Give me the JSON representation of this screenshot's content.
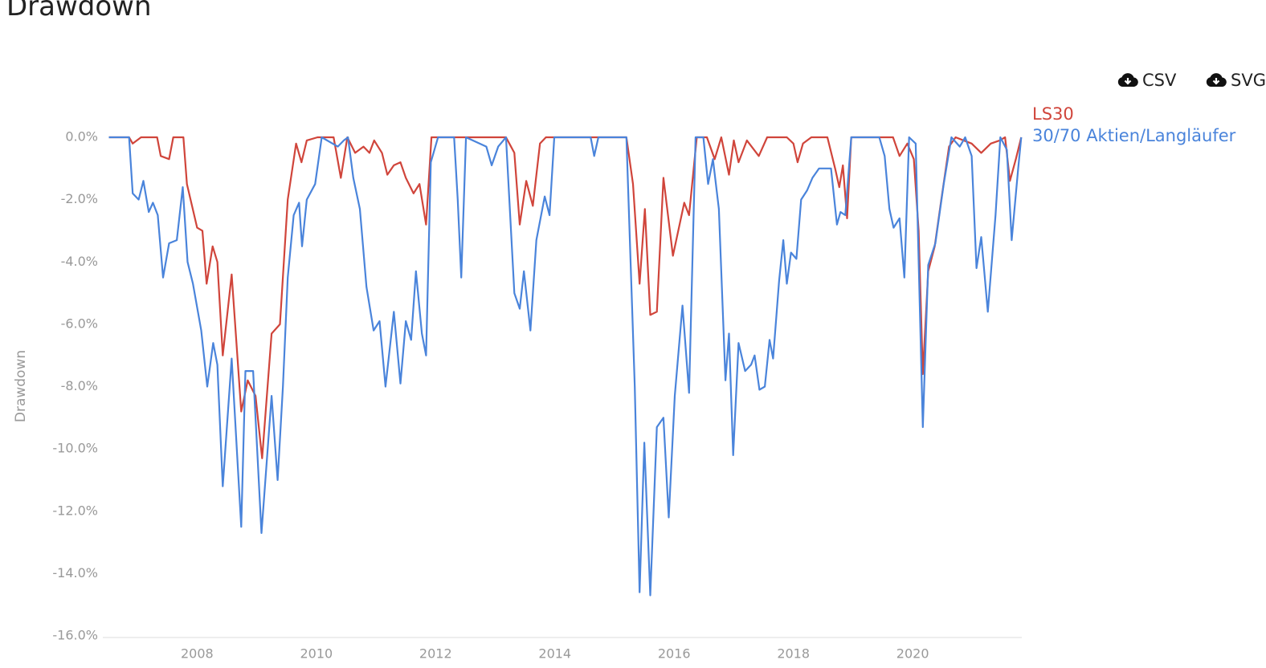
{
  "title": "Drawdown",
  "downloads": [
    "CSV",
    "SVG"
  ],
  "chart_data": {
    "type": "line",
    "ylabel": "Drawdown",
    "xlim": [
      2006.5,
      2021.83
    ],
    "xticks": [
      2008,
      2010,
      2012,
      2014,
      2016,
      2018,
      2020
    ],
    "ylim": [
      -16,
      0
    ],
    "yticks": [
      {
        "value": 0,
        "label": "0.0%"
      },
      {
        "value": -2,
        "label": "-2.0%"
      },
      {
        "value": -4,
        "label": "-4.0%"
      },
      {
        "value": -6,
        "label": "-6.0%"
      },
      {
        "value": -8,
        "label": "-8.0%"
      },
      {
        "value": -10,
        "label": "-10.0%"
      },
      {
        "value": -12,
        "label": "-12.0%"
      },
      {
        "value": -14,
        "label": "-14.0%"
      },
      {
        "value": -16,
        "label": "-16.0%"
      }
    ],
    "grid": false,
    "legend": "top-right",
    "series": [
      {
        "name": "LS30",
        "color": "#d0453b",
        "x": [
          2006.52,
          2006.86,
          2006.92,
          2007.06,
          2007.33,
          2007.39,
          2007.53,
          2007.6,
          2007.77,
          2007.83,
          2008.0,
          2008.09,
          2008.16,
          2008.26,
          2008.34,
          2008.43,
          2008.58,
          2008.74,
          2008.85,
          2008.98,
          2009.09,
          2009.25,
          2009.39,
          2009.52,
          2009.66,
          2009.75,
          2009.84,
          2010.02,
          2010.29,
          2010.41,
          2010.52,
          2010.65,
          2010.79,
          2010.89,
          2010.97,
          2011.1,
          2011.19,
          2011.3,
          2011.41,
          2011.5,
          2011.63,
          2011.73,
          2011.84,
          2011.93,
          2012.78,
          2013.18,
          2013.32,
          2013.41,
          2013.52,
          2013.63,
          2013.75,
          2013.85,
          2015.2,
          2015.31,
          2015.42,
          2015.51,
          2015.6,
          2015.71,
          2015.82,
          2015.98,
          2016.17,
          2016.25,
          2016.38,
          2016.55,
          2016.68,
          2016.79,
          2016.92,
          2017.0,
          2017.08,
          2017.22,
          2017.42,
          2017.56,
          2017.89,
          2018.0,
          2018.07,
          2018.16,
          2018.3,
          2018.57,
          2018.7,
          2018.77,
          2018.83,
          2018.9,
          2018.97,
          2019.51,
          2019.67,
          2019.78,
          2019.91,
          2020.02,
          2020.1,
          2020.17,
          2020.26,
          2020.37,
          2020.48,
          2020.61,
          2020.72,
          2020.99,
          2021.15,
          2021.31,
          2021.46,
          2021.55,
          2021.63,
          2021.73,
          2021.82
        ],
        "values": [
          0,
          0,
          -0.2,
          0,
          0,
          -0.6,
          -0.7,
          0,
          0,
          -1.5,
          -2.9,
          -3.0,
          -4.7,
          -3.5,
          -4.0,
          -7.0,
          -4.4,
          -8.8,
          -7.8,
          -8.3,
          -10.3,
          -6.3,
          -6.0,
          -2.0,
          -0.2,
          -0.8,
          -0.1,
          0,
          0,
          -1.3,
          0,
          -0.5,
          -0.3,
          -0.5,
          -0.1,
          -0.5,
          -1.2,
          -0.9,
          -0.8,
          -1.3,
          -1.8,
          -1.5,
          -2.8,
          0,
          0,
          0,
          -0.5,
          -2.8,
          -1.4,
          -2.2,
          -0.2,
          0,
          0,
          -1.5,
          -4.7,
          -2.3,
          -5.7,
          -5.6,
          -1.3,
          -3.8,
          -2.1,
          -2.5,
          0,
          0,
          -0.7,
          0,
          -1.2,
          -0.1,
          -0.8,
          -0.1,
          -0.6,
          0,
          0,
          -0.2,
          -0.8,
          -0.2,
          0,
          0,
          -1.0,
          -1.6,
          -0.9,
          -2.6,
          0,
          0,
          0,
          -0.6,
          -0.2,
          -0.7,
          -3.0,
          -7.6,
          -4.3,
          -3.5,
          -2.0,
          -0.3,
          0,
          -0.2,
          -0.5,
          -0.2,
          -0.1,
          0,
          -1.4,
          -0.7,
          0
        ]
      },
      {
        "name": "30/70 Aktien/Langläufer",
        "color": "#4a84db",
        "x": [
          2006.52,
          2006.86,
          2006.92,
          2007.02,
          2007.1,
          2007.19,
          2007.26,
          2007.34,
          2007.43,
          2007.53,
          2007.66,
          2007.76,
          2007.84,
          2007.93,
          2008.07,
          2008.17,
          2008.27,
          2008.34,
          2008.43,
          2008.58,
          2008.74,
          2008.81,
          2008.94,
          2009.08,
          2009.25,
          2009.35,
          2009.44,
          2009.52,
          2009.62,
          2009.71,
          2009.76,
          2009.84,
          2009.98,
          2010.09,
          2010.36,
          2010.46,
          2010.53,
          2010.62,
          2010.73,
          2010.84,
          2010.96,
          2011.06,
          2011.16,
          2011.3,
          2011.41,
          2011.5,
          2011.59,
          2011.67,
          2011.77,
          2011.84,
          2011.92,
          2012.04,
          2012.31,
          2012.37,
          2012.43,
          2012.51,
          2012.85,
          2012.94,
          2013.05,
          2013.18,
          2013.32,
          2013.41,
          2013.48,
          2013.59,
          2013.69,
          2013.83,
          2013.91,
          2013.99,
          2014.6,
          2014.66,
          2014.73,
          2015.2,
          2015.34,
          2015.42,
          2015.5,
          2015.6,
          2015.71,
          2015.82,
          2015.91,
          2016.01,
          2016.14,
          2016.25,
          2016.36,
          2016.49,
          2016.57,
          2016.65,
          2016.75,
          2016.86,
          2016.92,
          2016.99,
          2017.08,
          2017.19,
          2017.29,
          2017.35,
          2017.43,
          2017.52,
          2017.6,
          2017.66,
          2017.76,
          2017.83,
          2017.89,
          2017.96,
          2018.05,
          2018.13,
          2018.23,
          2018.32,
          2018.43,
          2018.63,
          2018.73,
          2018.79,
          2018.87,
          2018.97,
          2019.44,
          2019.53,
          2019.61,
          2019.68,
          2019.78,
          2019.86,
          2019.94,
          2020.05,
          2020.17,
          2020.26,
          2020.38,
          2020.52,
          2020.65,
          2020.79,
          2020.88,
          2020.99,
          2021.07,
          2021.15,
          2021.26,
          2021.39,
          2021.47,
          2021.58,
          2021.66,
          2021.77,
          2021.82
        ],
        "values": [
          0,
          0,
          -1.8,
          -2.0,
          -1.4,
          -2.4,
          -2.1,
          -2.5,
          -4.5,
          -3.4,
          -3.3,
          -1.6,
          -4.0,
          -4.7,
          -6.2,
          -8.0,
          -6.6,
          -7.3,
          -11.2,
          -7.1,
          -12.5,
          -7.5,
          -7.5,
          -12.7,
          -8.3,
          -11.0,
          -8.0,
          -4.5,
          -2.5,
          -2.1,
          -3.5,
          -2.0,
          -1.5,
          0,
          -0.3,
          -0.1,
          0,
          -1.3,
          -2.3,
          -4.8,
          -6.2,
          -5.9,
          -8.0,
          -5.6,
          -7.9,
          -5.9,
          -6.5,
          -4.3,
          -6.3,
          -7.0,
          -0.8,
          0,
          0,
          -2.0,
          -4.5,
          0,
          -0.3,
          -0.9,
          -0.3,
          0,
          -5.0,
          -5.5,
          -4.3,
          -6.2,
          -3.3,
          -1.9,
          -2.5,
          0,
          0,
          -0.6,
          0,
          0,
          -8.0,
          -14.6,
          -9.8,
          -14.7,
          -9.3,
          -9.0,
          -12.2,
          -8.3,
          -5.4,
          -8.2,
          0,
          0,
          -1.5,
          -0.7,
          -2.3,
          -7.8,
          -6.3,
          -10.2,
          -6.6,
          -7.5,
          -7.3,
          -7.0,
          -8.1,
          -8.0,
          -6.5,
          -7.1,
          -4.6,
          -3.3,
          -4.7,
          -3.7,
          -3.9,
          -2.0,
          -1.7,
          -1.3,
          -1.0,
          -1.0,
          -2.8,
          -2.4,
          -2.5,
          0,
          0,
          -0.6,
          -2.3,
          -2.9,
          -2.6,
          -4.5,
          0,
          -0.2,
          -9.3,
          -4.1,
          -3.4,
          -1.5,
          0,
          -0.3,
          0,
          -0.6,
          -4.2,
          -3.2,
          -5.6,
          -2.5,
          0,
          -0.4,
          -3.3,
          -1.0,
          0
        ]
      }
    ]
  }
}
